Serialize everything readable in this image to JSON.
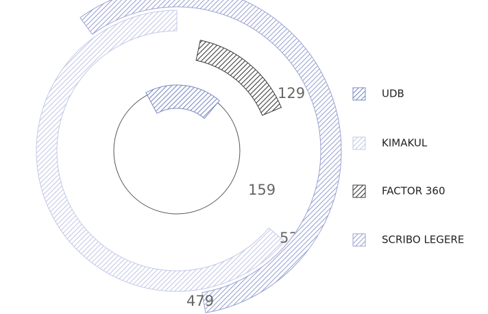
{
  "chart_data": {
    "type": "radial-bar",
    "series": [
      {
        "name": "UDB",
        "color": "#7a89c2",
        "value": 159
      },
      {
        "name": "KIMAKUL",
        "color": "#c3c8e6",
        "value": 535
      },
      {
        "name": "FACTOR 360",
        "color": "#3a3a3a",
        "value": 129
      },
      {
        "name": "SCRIBO LEGERE",
        "color": "#99a3d0",
        "value": 479
      }
    ]
  }
}
